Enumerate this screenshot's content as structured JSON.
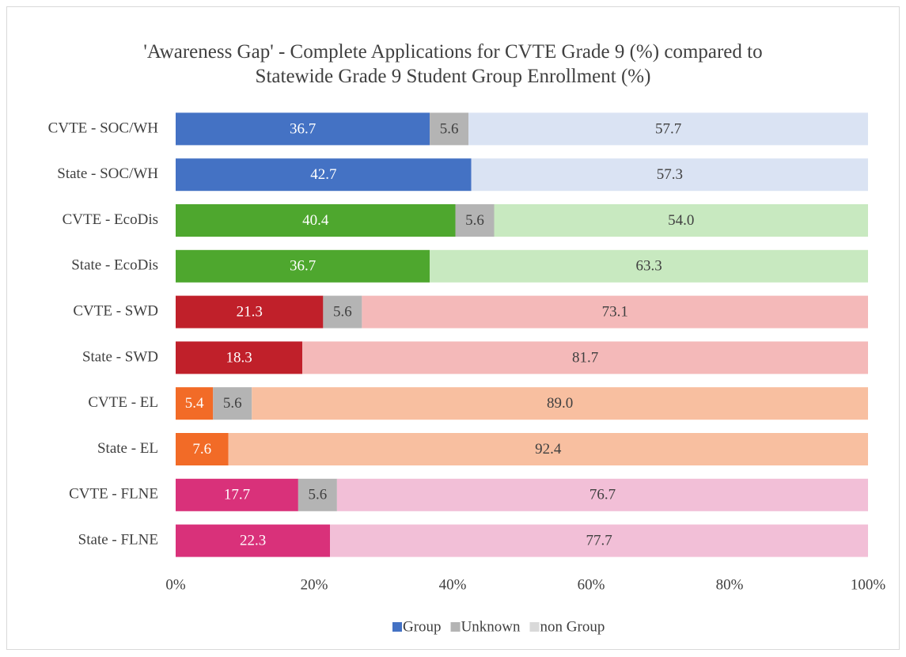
{
  "chart_data": {
    "type": "stacked-bar-horizontal",
    "title": "'Awareness Gap' - Complete Applications for CVTE Grade 9 (%) compared to Statewide Grade 9 Student Group Enrollment (%)",
    "categories": [
      "CVTE - SOC/WH",
      "State - SOC/WH",
      "CVTE - EcoDis",
      "State - EcoDis",
      "CVTE - SWD",
      "State - SWD",
      "CVTE - EL",
      "State - EL",
      "CVTE - FLNE",
      "State - FLNE"
    ],
    "series": [
      {
        "name": "Group",
        "color": "#4472c4",
        "colors": [
          "#4472c4",
          "#4472c4",
          "#4ea72e",
          "#4ea72e",
          "#c0202a",
          "#c0202a",
          "#f26b27",
          "#f26b27",
          "#d9317a",
          "#d9317a"
        ],
        "values": [
          36.7,
          42.7,
          40.4,
          36.7,
          21.3,
          18.3,
          5.4,
          7.6,
          17.7,
          22.3
        ]
      },
      {
        "name": "Unknown",
        "color": "#b4b4b4",
        "colors": [
          "#b4b4b4",
          "#b4b4b4",
          "#b4b4b4",
          "#b4b4b4",
          "#b4b4b4",
          "#b4b4b4",
          "#b4b4b4",
          "#b4b4b4",
          "#b4b4b4",
          "#b4b4b4"
        ],
        "values": [
          5.6,
          null,
          5.6,
          null,
          5.6,
          null,
          5.6,
          null,
          5.6,
          null
        ]
      },
      {
        "name": "non Group",
        "color": "#d9d9d9",
        "colors": [
          "#dae3f3",
          "#dae3f3",
          "#c8e9c0",
          "#c8e9c0",
          "#f4b9b9",
          "#f4b9b9",
          "#f8bfa0",
          "#f8bfa0",
          "#f2bfd7",
          "#f2bfd7"
        ],
        "values": [
          57.7,
          57.3,
          54.0,
          63.3,
          73.1,
          81.7,
          89.0,
          92.4,
          76.7,
          77.7
        ],
        "value_labels": [
          "57.7",
          "57.3",
          "54.0",
          "63.3",
          "73.1",
          "81.7",
          "89.0",
          "92.4",
          "76.7",
          "77.7"
        ]
      }
    ],
    "xlim": [
      0,
      100
    ],
    "xticks": [
      {
        "value": 0,
        "label": "0%"
      },
      {
        "value": 20,
        "label": "20%"
      },
      {
        "value": 40,
        "label": "40%"
      },
      {
        "value": 60,
        "label": "60%"
      },
      {
        "value": 80,
        "label": "80%"
      },
      {
        "value": 100,
        "label": "100%"
      }
    ],
    "legend": "bottom"
  }
}
